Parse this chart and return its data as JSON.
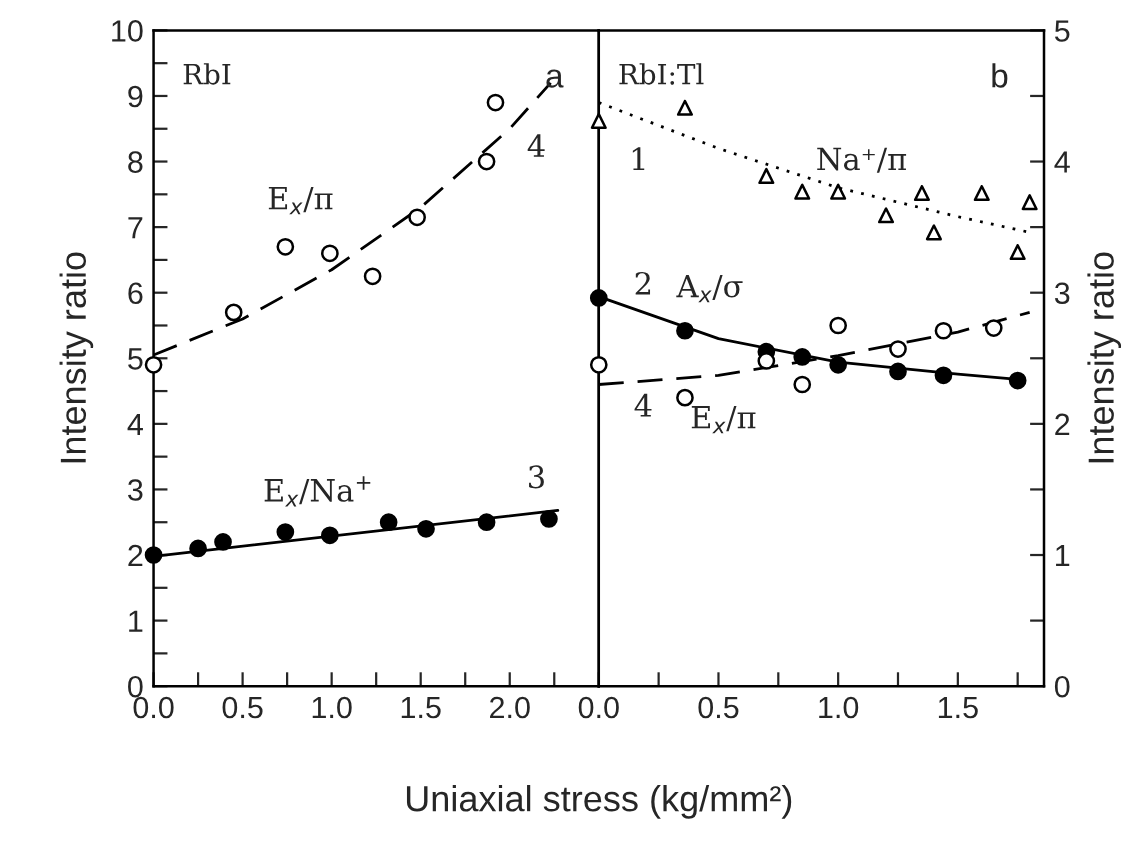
{
  "chart_data": [
    {
      "type": "scatter",
      "xlabel": "Uniaxial stress (kg/mm²)",
      "ylabel": "Intensity ratio",
      "xlim": [
        0,
        2.5
      ],
      "ylim": [
        0,
        10
      ],
      "xticks": [
        {
          "value": 0,
          "label": "0.0"
        },
        {
          "value": 0.25,
          "label": null
        },
        {
          "value": 0.5,
          "label": "0.5"
        },
        {
          "value": 0.75,
          "label": null
        },
        {
          "value": 1,
          "label": "1.0"
        },
        {
          "value": 1.25,
          "label": null
        },
        {
          "value": 1.5,
          "label": "1.5"
        },
        {
          "value": 1.75,
          "label": null
        },
        {
          "value": 2,
          "label": "2.0"
        },
        {
          "value": 2.25,
          "label": null
        }
      ],
      "yticks": [
        0,
        {
          "value": 0.5,
          "label": null
        },
        1,
        {
          "value": 1.5,
          "label": null
        },
        2,
        {
          "value": 2.5,
          "label": null
        },
        3,
        {
          "value": 3.5,
          "label": null
        },
        4,
        {
          "value": 4.5,
          "label": null
        },
        5,
        {
          "value": 5.5,
          "label": null
        },
        6,
        {
          "value": 6.5,
          "label": null
        },
        7,
        {
          "value": 7.5,
          "label": null
        },
        8,
        {
          "value": 8.5,
          "label": null
        },
        9,
        {
          "value": 9.5,
          "label": null
        },
        10
      ],
      "series": [
        {
          "marker": "circle",
          "color": "#ffffff",
          "x": [
            0,
            0.45,
            0.74,
            0.99,
            1.23,
            1.48,
            1.87,
            1.92
          ],
          "values": [
            4.9,
            5.7,
            6.7,
            6.6,
            6.25,
            7.15,
            8.0,
            8.9
          ]
        },
        {
          "type": "line",
          "line_style": "dashed",
          "color": "#000000",
          "x": [
            0,
            0.5,
            1.0,
            1.5,
            2.0,
            2.23
          ],
          "values": [
            5.05,
            5.6,
            6.35,
            7.3,
            8.5,
            9.2
          ]
        },
        {
          "marker": "circle",
          "color": "#000000",
          "x": [
            0,
            0.25,
            0.39,
            0.74,
            0.99,
            1.32,
            1.53,
            1.87,
            2.22
          ],
          "values": [
            2.0,
            2.1,
            2.2,
            2.35,
            2.3,
            2.5,
            2.4,
            2.5,
            2.55
          ]
        },
        {
          "type": "line",
          "line_style": "solid",
          "color": "#000000",
          "x": [
            0,
            2.27
          ],
          "values": [
            1.98,
            2.68
          ]
        }
      ],
      "annotations": [
        "RbI",
        "a",
        "E$_{x}$/π",
        "4",
        "E$_{x}$/Na$^{+}$",
        "3"
      ]
    },
    {
      "type": "scatter",
      "ylabel": "Intensity ratio",
      "xlim": [
        0,
        1.86
      ],
      "ylim": [
        0,
        5
      ],
      "xticks": [
        {
          "value": 0,
          "label": "0.0"
        },
        {
          "value": 0.25,
          "label": null
        },
        {
          "value": 0.5,
          "label": "0.5"
        },
        {
          "value": 0.75,
          "label": null
        },
        {
          "value": 1,
          "label": "1.0"
        },
        {
          "value": 1.25,
          "label": null
        },
        {
          "value": 1.5,
          "label": "1.5"
        },
        {
          "value": 1.75,
          "label": null
        }
      ],
      "yticks": [
        0,
        {
          "value": 0.5,
          "label": null
        },
        1,
        {
          "value": 1.5,
          "label": null
        },
        2,
        {
          "value": 2.5,
          "label": null
        },
        3,
        {
          "value": 3.5,
          "label": null
        },
        4,
        {
          "value": 4.5,
          "label": null
        },
        5
      ],
      "series": [
        {
          "marker": "triangle",
          "color": "#ffffff",
          "x": [
            0,
            0.36,
            0.7,
            0.85,
            1.0,
            1.2,
            1.35,
            1.4,
            1.6,
            1.75,
            1.8
          ],
          "values": [
            4.31,
            4.41,
            3.89,
            3.77,
            3.77,
            3.59,
            3.76,
            3.46,
            3.76,
            3.31,
            3.69
          ]
        },
        {
          "type": "line",
          "line_style": "dotted",
          "color": "#000000",
          "x": [
            0,
            0.5,
            1.0,
            1.5,
            1.8
          ],
          "values": [
            4.45,
            4.1,
            3.8,
            3.58,
            3.46
          ]
        },
        {
          "marker": "circle",
          "color": "#000000",
          "x": [
            0,
            0.36,
            0.7,
            0.85,
            1.0,
            1.25,
            1.44,
            1.75
          ],
          "values": [
            2.96,
            2.71,
            2.55,
            2.51,
            2.45,
            2.4,
            2.37,
            2.33
          ]
        },
        {
          "type": "line",
          "line_style": "solid",
          "color": "#000000",
          "x": [
            0,
            0.5,
            1.0,
            1.5,
            1.75
          ],
          "values": [
            2.97,
            2.65,
            2.47,
            2.38,
            2.34
          ]
        },
        {
          "marker": "circle",
          "color": "#ffffff",
          "x": [
            0,
            0.36,
            0.7,
            0.85,
            1.0,
            1.25,
            1.44,
            1.65
          ],
          "values": [
            2.45,
            2.2,
            2.48,
            2.3,
            2.75,
            2.57,
            2.71,
            2.73
          ]
        },
        {
          "type": "line",
          "line_style": "dashed",
          "color": "#000000",
          "x": [
            0,
            0.5,
            1.0,
            1.5,
            1.8
          ],
          "values": [
            2.3,
            2.37,
            2.52,
            2.7,
            2.85
          ]
        }
      ],
      "annotations": [
        "RbI:Tl",
        "b",
        "1",
        "Na⁺/π",
        "2",
        "A$_{x}$/σ",
        "4",
        "E$_{x}$/π"
      ]
    }
  ]
}
